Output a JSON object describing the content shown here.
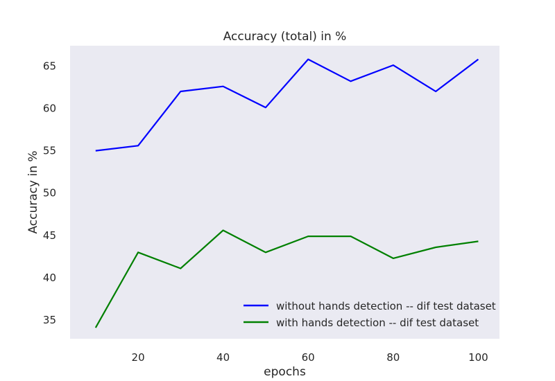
{
  "chart_data": {
    "type": "line",
    "title": "Accuracy (total)  in %",
    "xlabel": "epochs",
    "ylabel": "Accuracy in %",
    "xlim": [
      4,
      105
    ],
    "ylim": [
      32.8,
      67.4
    ],
    "xticks": [
      20,
      40,
      60,
      80,
      100
    ],
    "yticks": [
      35,
      40,
      45,
      50,
      55,
      60,
      65
    ],
    "grid": false,
    "legend_position": "lower-right",
    "x": [
      10,
      20,
      30,
      40,
      50,
      60,
      70,
      80,
      90,
      100
    ],
    "series": [
      {
        "name": "without hands detection -- dif test dataset",
        "color": "#0000ff",
        "values": [
          55.0,
          55.6,
          62.0,
          62.6,
          60.1,
          65.8,
          63.2,
          65.1,
          62.0,
          65.8
        ]
      },
      {
        "name": "with hands detection -- dif test dataset",
        "color": "#008000",
        "values": [
          34.1,
          43.0,
          41.1,
          45.6,
          43.0,
          44.9,
          44.9,
          42.3,
          43.6,
          44.3
        ]
      }
    ]
  }
}
